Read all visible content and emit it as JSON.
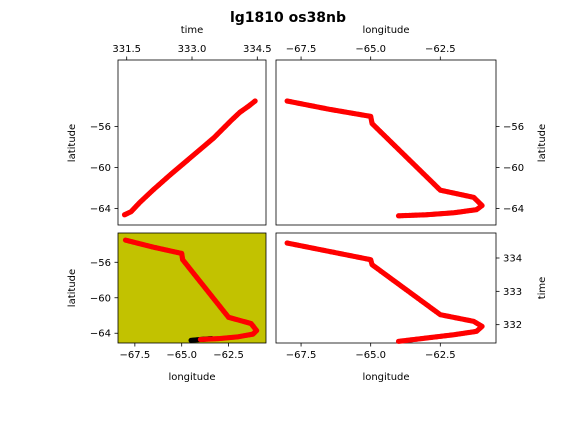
{
  "title": "lg1810 os38nb",
  "colors": {
    "track": "#ff0000",
    "track_dark": "#000000",
    "highlight_bg": "#c2c200",
    "axes": "#000000"
  },
  "chart_data": [
    {
      "id": "time-latitude",
      "type": "scatter",
      "xlabel": "time",
      "ylabel": "latitude",
      "xlabel_position": "top",
      "ylabel_position": "left",
      "xlim": [
        331.3,
        334.7
      ],
      "ylim": [
        -65.6,
        -49.5
      ],
      "xticks": [
        331.5,
        333.0,
        334.5
      ],
      "xtick_labels": [
        "331.5",
        "333.0",
        "334.5"
      ],
      "yticks": [
        -56,
        -60,
        -64
      ],
      "ytick_labels": [
        "−56",
        "−60",
        "−64"
      ],
      "series": [
        {
          "color": "#ff0000",
          "x": [
            331.45,
            331.6,
            331.8,
            332.1,
            332.5,
            333.0,
            333.5,
            333.9,
            334.1,
            334.3,
            334.45
          ],
          "y": [
            -64.6,
            -64.3,
            -63.4,
            -62.2,
            -60.7,
            -58.9,
            -57.1,
            -55.4,
            -54.6,
            -54.0,
            -53.5
          ]
        }
      ]
    },
    {
      "id": "lon-lat-right",
      "type": "scatter",
      "xlabel": "longitude",
      "ylabel": "latitude",
      "xlabel_position": "top",
      "ylabel_position": "right",
      "xlim": [
        -68.4,
        -60.5
      ],
      "ylim": [
        -65.6,
        -49.5
      ],
      "xticks": [
        -67.5,
        -65.0,
        -62.5
      ],
      "xtick_labels": [
        "−67.5",
        "−65.0",
        "−62.5"
      ],
      "yticks": [
        -56,
        -60,
        -64
      ],
      "ytick_labels": [
        "−56",
        "−60",
        "−64"
      ],
      "series": [
        {
          "color": "#ff0000",
          "x": [
            -68.0,
            -66.5,
            -65.0,
            -64.95,
            -62.5,
            -61.3,
            -61.0,
            -61.2,
            -62.0,
            -63.0,
            -64.0
          ],
          "y": [
            -53.5,
            -54.3,
            -55.0,
            -55.7,
            -62.2,
            -62.9,
            -63.7,
            -64.1,
            -64.4,
            -64.6,
            -64.7
          ]
        }
      ]
    },
    {
      "id": "lon-lat-left",
      "type": "scatter",
      "xlabel": "longitude",
      "ylabel": "latitude",
      "xlabel_position": "bottom",
      "ylabel_position": "left",
      "xlim": [
        -68.4,
        -60.5
      ],
      "ylim": [
        -65.1,
        -52.7
      ],
      "xticks": [
        -67.5,
        -65.0,
        -62.5
      ],
      "xtick_labels": [
        "−67.5",
        "−65.0",
        "−62.5"
      ],
      "yticks": [
        -56,
        -60,
        -64
      ],
      "ytick_labels": [
        "−56",
        "−60",
        "−64"
      ],
      "series": [
        {
          "color": "#000000",
          "x": [
            -64.5,
            -64.0,
            -63.4
          ],
          "y": [
            -64.8,
            -64.7,
            -64.6
          ]
        },
        {
          "color": "#ff0000",
          "x": [
            -68.0,
            -66.5,
            -65.0,
            -64.95,
            -62.5,
            -61.3,
            -61.0,
            -61.2,
            -62.0,
            -63.0,
            -64.0
          ],
          "y": [
            -53.5,
            -54.3,
            -55.0,
            -55.7,
            -62.2,
            -62.9,
            -63.7,
            -64.1,
            -64.4,
            -64.6,
            -64.7
          ]
        }
      ]
    },
    {
      "id": "lon-time",
      "type": "scatter",
      "xlabel": "longitude",
      "ylabel": "time",
      "xlabel_position": "bottom",
      "ylabel_position": "right",
      "xlim": [
        -68.4,
        -60.5
      ],
      "ylim": [
        331.45,
        334.75
      ],
      "xticks": [
        -67.5,
        -65.0,
        -62.5
      ],
      "xtick_labels": [
        "−67.5",
        "−65.0",
        "−62.5"
      ],
      "yticks": [
        334,
        333,
        332
      ],
      "ytick_labels": [
        "334",
        "333",
        "332"
      ],
      "series": [
        {
          "color": "#ff0000",
          "x": [
            -68.0,
            -66.5,
            -65.0,
            -64.95,
            -62.5,
            -61.3,
            -61.0,
            -61.2,
            -62.0,
            -63.0,
            -64.0
          ],
          "y": [
            334.45,
            334.2,
            333.95,
            333.8,
            332.3,
            332.1,
            331.95,
            331.8,
            331.7,
            331.6,
            331.5
          ]
        }
      ]
    }
  ]
}
